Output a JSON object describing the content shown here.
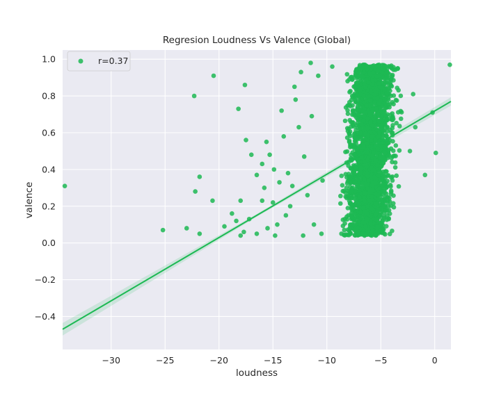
{
  "chart_data": {
    "type": "scatter",
    "title": "Regresion Loudness Vs Valence (Global)",
    "xlabel": "loudness",
    "ylabel": "valence",
    "xlim": [
      -34.5,
      1.5
    ],
    "ylim": [
      -0.58,
      1.05
    ],
    "xticks": [
      -30,
      -25,
      -20,
      -15,
      -10,
      -5,
      0
    ],
    "xtick_labels": [
      "−30",
      "−25",
      "−20",
      "−15",
      "−10",
      "−5",
      "0"
    ],
    "yticks": [
      -0.4,
      -0.2,
      0.0,
      0.2,
      0.4,
      0.6,
      0.8,
      1.0
    ],
    "ytick_labels": [
      "−0.4",
      "−0.2",
      "0.0",
      "0.2",
      "0.4",
      "0.6",
      "0.8",
      "1.0"
    ],
    "grid": true,
    "legend_position": "top-left",
    "series": [
      {
        "name": "r=0.37",
        "color": "#1db954",
        "regression": {
          "x": [
            -34.5,
            1.5
          ],
          "y": [
            -0.47,
            0.77
          ]
        },
        "points": [
          {
            "x": -34.3,
            "y": 0.31
          },
          {
            "x": 1.4,
            "y": 0.97
          },
          {
            "x": -22.3,
            "y": 0.8
          },
          {
            "x": -20.5,
            "y": 0.91
          },
          {
            "x": -17.6,
            "y": 0.86
          },
          {
            "x": -18.2,
            "y": 0.73
          },
          {
            "x": -25.2,
            "y": 0.07
          },
          {
            "x": -23.0,
            "y": 0.08
          },
          {
            "x": -21.8,
            "y": 0.05
          },
          {
            "x": -22.2,
            "y": 0.28
          },
          {
            "x": -21.8,
            "y": 0.36
          },
          {
            "x": -20.6,
            "y": 0.23
          },
          {
            "x": -19.5,
            "y": 0.09
          },
          {
            "x": -18.8,
            "y": 0.16
          },
          {
            "x": -18.4,
            "y": 0.12
          },
          {
            "x": -18.0,
            "y": 0.04
          },
          {
            "x": -17.7,
            "y": 0.06
          },
          {
            "x": -18.0,
            "y": 0.23
          },
          {
            "x": -17.5,
            "y": 0.56
          },
          {
            "x": -17.0,
            "y": 0.48
          },
          {
            "x": -16.5,
            "y": 0.37
          },
          {
            "x": -16.0,
            "y": 0.43
          },
          {
            "x": -15.6,
            "y": 0.55
          },
          {
            "x": -15.3,
            "y": 0.48
          },
          {
            "x": -14.9,
            "y": 0.4
          },
          {
            "x": -14.6,
            "y": 0.1
          },
          {
            "x": -14.2,
            "y": 0.72
          },
          {
            "x": -14.0,
            "y": 0.58
          },
          {
            "x": -13.6,
            "y": 0.38
          },
          {
            "x": -13.4,
            "y": 0.2
          },
          {
            "x": -13.2,
            "y": 0.31
          },
          {
            "x": -13.0,
            "y": 0.85
          },
          {
            "x": -12.4,
            "y": 0.93
          },
          {
            "x": -12.6,
            "y": 0.63
          },
          {
            "x": -12.1,
            "y": 0.47
          },
          {
            "x": -11.8,
            "y": 0.26
          },
          {
            "x": -11.5,
            "y": 0.98
          },
          {
            "x": -11.2,
            "y": 0.1
          },
          {
            "x": -15.5,
            "y": 0.08
          },
          {
            "x": -16.5,
            "y": 0.05
          },
          {
            "x": -17.2,
            "y": 0.13
          },
          {
            "x": -15.0,
            "y": 0.22
          },
          {
            "x": -14.4,
            "y": 0.33
          },
          {
            "x": -13.8,
            "y": 0.15
          },
          {
            "x": -12.9,
            "y": 0.78
          },
          {
            "x": -11.4,
            "y": 0.69
          },
          {
            "x": -10.8,
            "y": 0.91
          },
          {
            "x": -10.4,
            "y": 0.34
          },
          {
            "x": -16.0,
            "y": 0.23
          },
          {
            "x": -15.8,
            "y": 0.3
          },
          {
            "x": -14.8,
            "y": 0.04
          },
          {
            "x": -12.2,
            "y": 0.04
          },
          {
            "x": -10.5,
            "y": 0.05
          },
          {
            "x": -9.5,
            "y": 0.96
          },
          {
            "x": -2.0,
            "y": 0.81
          },
          {
            "x": -0.2,
            "y": 0.71
          },
          {
            "x": 0.1,
            "y": 0.49
          },
          {
            "x": -0.9,
            "y": 0.37
          },
          {
            "x": -2.3,
            "y": 0.5
          },
          {
            "x": -1.8,
            "y": 0.63
          }
        ],
        "dense_cloud": {
          "x_center": -6.0,
          "x_spread": 1.6,
          "y_min": 0.04,
          "y_max": 0.97,
          "count": 2600
        }
      }
    ]
  }
}
